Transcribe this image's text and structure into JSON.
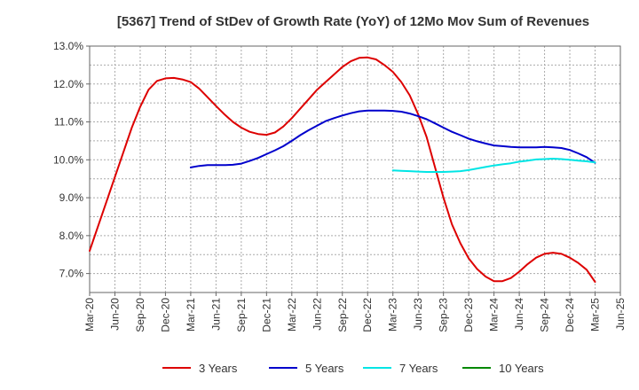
{
  "chart_data": {
    "type": "line",
    "title": "[5367]  Trend of StDev of Growth Rate (YoY) of 12Mo Mov Sum of Revenues",
    "xlabel": "",
    "ylabel": "",
    "ylim": [
      6.5,
      13.0
    ],
    "yticks": [
      7.0,
      8.0,
      9.0,
      10.0,
      11.0,
      12.0,
      13.0
    ],
    "ytick_labels": [
      "7.0%",
      "8.0%",
      "9.0%",
      "10.0%",
      "11.0%",
      "12.0%",
      "13.0%"
    ],
    "x_tick_labels": [
      "Mar-20",
      "Jun-20",
      "Sep-20",
      "Dec-20",
      "Mar-21",
      "Jun-21",
      "Sep-21",
      "Dec-21",
      "Mar-22",
      "Jun-22",
      "Sep-22",
      "Dec-22",
      "Mar-23",
      "Jun-23",
      "Sep-23",
      "Dec-23",
      "Mar-24",
      "Jun-24",
      "Sep-24",
      "Dec-24",
      "Mar-25",
      "Jun-25"
    ],
    "x_month_index_note": "x values are month offsets from Mar-20",
    "grid": true,
    "legend_position": "bottom",
    "series": [
      {
        "name": "3 Years",
        "color": "#dd0000",
        "x": [
          0,
          1,
          2,
          3,
          4,
          5,
          6,
          7,
          8,
          9,
          10,
          11,
          12,
          13,
          14,
          15,
          16,
          17,
          18,
          19,
          20,
          21,
          22,
          23,
          24,
          25,
          26,
          27,
          28,
          29,
          30,
          31,
          32,
          33,
          34,
          35,
          36,
          37,
          38,
          39,
          40,
          41,
          42,
          43,
          44,
          45,
          46,
          47,
          48,
          49,
          50,
          51,
          52,
          53,
          54,
          55,
          56,
          57,
          58,
          59,
          60
        ],
        "values": [
          7.6,
          8.25,
          8.9,
          9.55,
          10.2,
          10.85,
          11.4,
          11.85,
          12.08,
          12.15,
          12.16,
          12.12,
          12.05,
          11.88,
          11.65,
          11.42,
          11.2,
          11.0,
          10.85,
          10.74,
          10.68,
          10.66,
          10.72,
          10.88,
          11.1,
          11.35,
          11.6,
          11.85,
          12.05,
          12.25,
          12.45,
          12.6,
          12.69,
          12.7,
          12.65,
          12.5,
          12.32,
          12.05,
          11.7,
          11.2,
          10.6,
          9.8,
          9.0,
          8.3,
          7.8,
          7.4,
          7.12,
          6.92,
          6.8,
          6.8,
          6.88,
          7.05,
          7.25,
          7.42,
          7.52,
          7.55,
          7.52,
          7.42,
          7.28,
          7.1,
          6.78
        ]
      },
      {
        "name": "5 Years",
        "color": "#0000cc",
        "x": [
          12,
          13,
          14,
          15,
          16,
          17,
          18,
          19,
          20,
          21,
          22,
          23,
          24,
          25,
          26,
          27,
          28,
          29,
          30,
          31,
          32,
          33,
          34,
          35,
          36,
          37,
          38,
          39,
          40,
          41,
          42,
          43,
          44,
          45,
          46,
          47,
          48,
          49,
          50,
          51,
          52,
          53,
          54,
          55,
          56,
          57,
          58,
          59,
          60
        ],
        "values": [
          9.8,
          9.84,
          9.86,
          9.86,
          9.86,
          9.87,
          9.9,
          9.97,
          10.05,
          10.15,
          10.25,
          10.36,
          10.5,
          10.65,
          10.78,
          10.9,
          11.02,
          11.1,
          11.17,
          11.23,
          11.28,
          11.3,
          11.3,
          11.3,
          11.29,
          11.27,
          11.22,
          11.15,
          11.07,
          10.96,
          10.85,
          10.74,
          10.65,
          10.56,
          10.49,
          10.43,
          10.38,
          10.36,
          10.34,
          10.33,
          10.33,
          10.33,
          10.34,
          10.33,
          10.31,
          10.26,
          10.17,
          10.07,
          9.92
        ]
      },
      {
        "name": "7 Years",
        "color": "#00e5e5",
        "x": [
          36,
          37,
          38,
          39,
          40,
          41,
          42,
          43,
          44,
          45,
          46,
          47,
          48,
          49,
          50,
          51,
          52,
          53,
          54,
          55,
          56,
          57,
          58,
          59,
          60
        ],
        "values": [
          9.72,
          9.71,
          9.7,
          9.69,
          9.68,
          9.68,
          9.68,
          9.69,
          9.7,
          9.73,
          9.77,
          9.81,
          9.85,
          9.88,
          9.91,
          9.95,
          9.98,
          10.01,
          10.02,
          10.03,
          10.02,
          10.0,
          9.98,
          9.96,
          9.93
        ]
      },
      {
        "name": "10 Years",
        "color": "#008800",
        "x": [],
        "values": []
      }
    ]
  }
}
